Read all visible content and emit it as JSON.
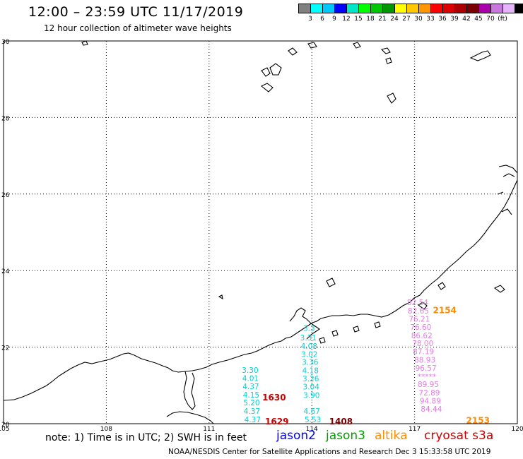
{
  "header": {
    "title": "12:00 – 23:59 UTC 11/17/2019",
    "subtitle": "12 hour collection of altimeter wave heights"
  },
  "colorbar": {
    "colors": [
      "#808080",
      "#00ffff",
      "#00c8ff",
      "#0000ff",
      "#00e6c8",
      "#00ff00",
      "#00c800",
      "#009600",
      "#ffff00",
      "#ffc800",
      "#ff9600",
      "#ff0000",
      "#dc0000",
      "#aa0000",
      "#780000",
      "#aa00aa",
      "#c878dc",
      "#e6b4ff",
      "#000000"
    ],
    "labels": [
      "3",
      "6",
      "9",
      "12",
      "15",
      "18",
      "21",
      "24",
      "27",
      "30",
      "33",
      "36",
      "39",
      "42",
      "45",
      "70",
      "(ft)"
    ]
  },
  "map": {
    "lon_ticks": [
      "105",
      "108",
      "111",
      "114",
      "117",
      "120"
    ],
    "lat_ticks": [
      "30",
      "28",
      "26",
      "24",
      "22",
      "20"
    ],
    "tracks": [
      {
        "satellite": "jason3",
        "color": "#00d2d2",
        "points": [
          {
            "label": "3.30",
            "lat": 21.4,
            "lon": 112.2
          },
          {
            "label": "4.01",
            "lat": 21.19,
            "lon": 112.21
          },
          {
            "label": "4.37",
            "lat": 20.98,
            "lon": 112.22
          },
          {
            "label": "4.15",
            "lat": 20.76,
            "lon": 112.23
          },
          {
            "label": "5.20",
            "lat": 20.55,
            "lon": 112.24
          },
          {
            "label": "4.37",
            "lat": 20.33,
            "lon": 112.25
          },
          {
            "label": "4.37",
            "lat": 20.11,
            "lon": 112.27
          }
        ]
      },
      {
        "satellite": "jason3",
        "color": "#00d2d2",
        "points": [
          {
            "label": "3.3",
            "lat": 22.5,
            "lon": 113.92
          },
          {
            "label": "3.31",
            "lat": 22.25,
            "lon": 113.9
          },
          {
            "label": "4.08",
            "lat": 22.03,
            "lon": 113.92
          },
          {
            "label": "3.02",
            "lat": 21.82,
            "lon": 113.93
          },
          {
            "label": "3.36",
            "lat": 21.61,
            "lon": 113.95
          },
          {
            "label": "4.18",
            "lat": 21.39,
            "lon": 113.96
          },
          {
            "label": "3.26",
            "lat": 21.18,
            "lon": 113.97
          },
          {
            "label": "3.04",
            "lat": 20.97,
            "lon": 113.98
          },
          {
            "label": "3.90",
            "lat": 20.75,
            "lon": 113.99
          },
          {
            "label": "4.67",
            "lat": 20.33,
            "lon": 114.0
          },
          {
            "label": "5.53",
            "lat": 20.11,
            "lon": 114.03
          }
        ]
      },
      {
        "satellite": "cryosat",
        "color": "#e07ee0",
        "points": [
          {
            "label": "82.54",
            "lat": 23.17,
            "lon": 117.09
          },
          {
            "label": "82.65",
            "lat": 22.95,
            "lon": 117.11
          },
          {
            "label": "76.21",
            "lat": 22.74,
            "lon": 117.14
          },
          {
            "label": "76.60",
            "lat": 22.53,
            "lon": 117.18
          },
          {
            "label": "86.62",
            "lat": 22.31,
            "lon": 117.21
          },
          {
            "label": "78.00",
            "lat": 22.1,
            "lon": 117.24
          },
          {
            "label": "87.19",
            "lat": 21.89,
            "lon": 117.26
          },
          {
            "label": "88.93",
            "lat": 21.67,
            "lon": 117.3
          },
          {
            "label": "96.57",
            "lat": 21.46,
            "lon": 117.33
          },
          {
            "label": "*****",
            "lat": 21.24,
            "lon": 117.36
          },
          {
            "label": "89.95",
            "lat": 21.03,
            "lon": 117.4
          },
          {
            "label": "72.89",
            "lat": 20.81,
            "lon": 117.43
          },
          {
            "label": "94.89",
            "lat": 20.6,
            "lon": 117.46
          },
          {
            "label": "84.44",
            "lat": 20.39,
            "lon": 117.49
          }
        ]
      }
    ],
    "time_labels": [
      {
        "text": "1630",
        "color": "#cc0000",
        "lat": 20.7,
        "lon": 112.9
      },
      {
        "text": "1629",
        "color": "#cc0000",
        "lat": 20.07,
        "lon": 112.98
      },
      {
        "text": "1408",
        "color": "#7a0000",
        "lat": 20.07,
        "lon": 114.85
      },
      {
        "text": "2154",
        "color": "#ff8c00",
        "lat": 22.98,
        "lon": 117.88
      },
      {
        "text": "2153",
        "color": "#ff8c00",
        "lat": 20.1,
        "lon": 118.85
      }
    ]
  },
  "footer": {
    "note": "note: 1) Time is in UTC; 2) SWH is in feet",
    "satellites": [
      {
        "name": "jason2",
        "color": "#0000ff"
      },
      {
        "name": "jason3",
        "color": "#00a000"
      },
      {
        "name": "altika",
        "color": "#ff8c00"
      },
      {
        "name": "cryosat s3a",
        "color": "#cc0000"
      }
    ],
    "credit": "NOAA/NESDIS Center for Satellite Applications and Research    Dec  3 15:33:58 UTC 2019"
  }
}
